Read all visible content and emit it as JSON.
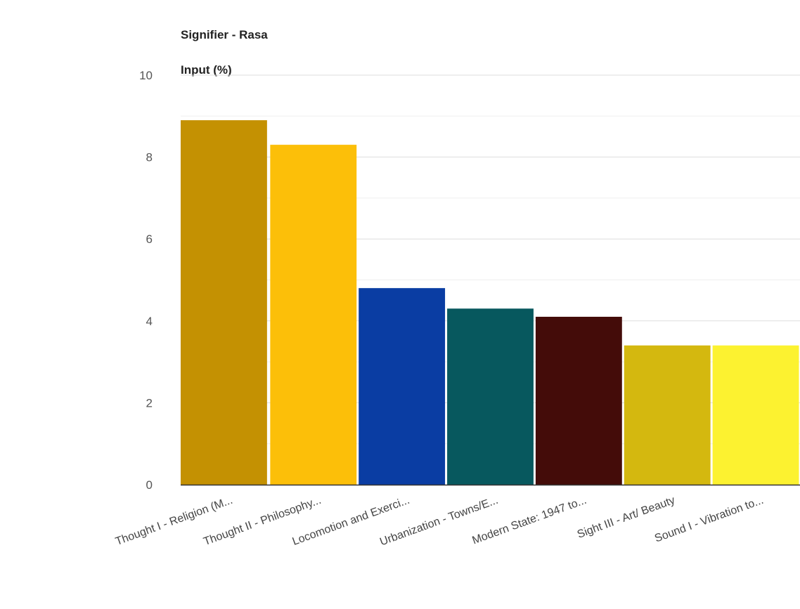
{
  "chart_data": {
    "type": "bar",
    "title_line1": "Signifier - Rasa",
    "title_line2": "Input (%)",
    "categories": [
      "Thought I - Religion (M...",
      "Thought II - Philosophy...",
      "Locomotion and Exerci...",
      "Urbanization - Towns/E...",
      "Modern State: 1947 to...",
      "Sight III - Art/ Beauty",
      "Sound I - Vibration to..."
    ],
    "values": [
      8.9,
      8.3,
      4.8,
      4.3,
      4.1,
      3.4,
      3.4
    ],
    "colors": [
      "#C49102",
      "#FCBF09",
      "#0A3DA3",
      "#07585E",
      "#440C09",
      "#D4B80F",
      "#FCF230"
    ],
    "ylim": [
      0,
      10
    ],
    "yticks": [
      "0",
      "2",
      "4",
      "6",
      "8",
      "10"
    ],
    "grid": true,
    "legend": "none"
  }
}
